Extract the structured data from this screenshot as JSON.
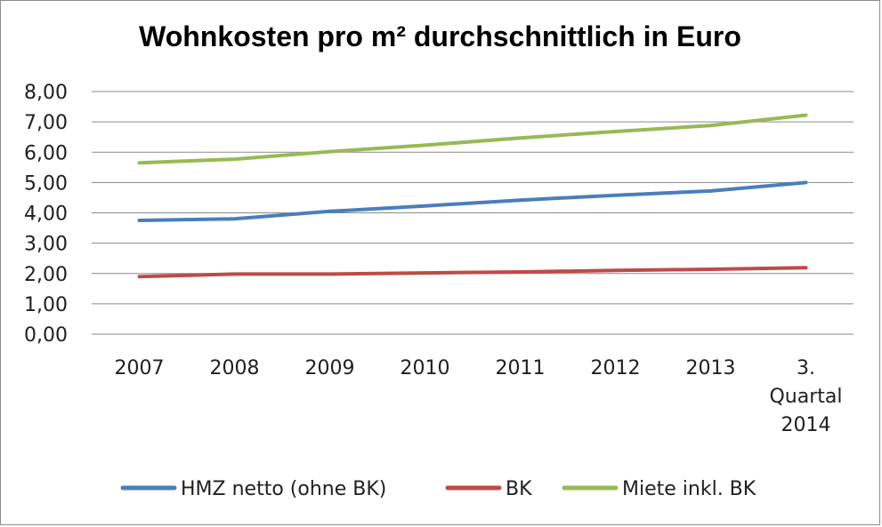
{
  "chart_data": {
    "type": "line",
    "title": "Wohnkosten pro m² durchschnittlich in Euro",
    "xlabel": "",
    "ylabel": "",
    "categories": [
      "2007",
      "2008",
      "2009",
      "2010",
      "2011",
      "2012",
      "2013",
      "3. Quartal 2014"
    ],
    "category_lines": [
      [
        "2007"
      ],
      [
        "2008"
      ],
      [
        "2009"
      ],
      [
        "2010"
      ],
      [
        "2011"
      ],
      [
        "2012"
      ],
      [
        "2013"
      ],
      [
        "3.",
        "Quartal",
        "2014"
      ]
    ],
    "ylim": [
      0,
      8
    ],
    "yticks": [
      "0,00",
      "1,00",
      "2,00",
      "3,00",
      "4,00",
      "5,00",
      "6,00",
      "7,00",
      "8,00"
    ],
    "grid": true,
    "legend_position": "bottom",
    "series": [
      {
        "name": "HMZ netto (ohne BK)",
        "color": "#4a7ebb",
        "values": [
          3.75,
          3.8,
          4.05,
          4.23,
          4.42,
          4.58,
          4.72,
          5.0
        ]
      },
      {
        "name": "BK",
        "color": "#be4b48",
        "values": [
          1.9,
          1.98,
          1.98,
          2.02,
          2.05,
          2.1,
          2.14,
          2.19
        ]
      },
      {
        "name": "Miete inkl. BK",
        "color": "#98b954",
        "values": [
          5.65,
          5.77,
          6.02,
          6.23,
          6.47,
          6.68,
          6.88,
          7.22
        ]
      }
    ]
  }
}
